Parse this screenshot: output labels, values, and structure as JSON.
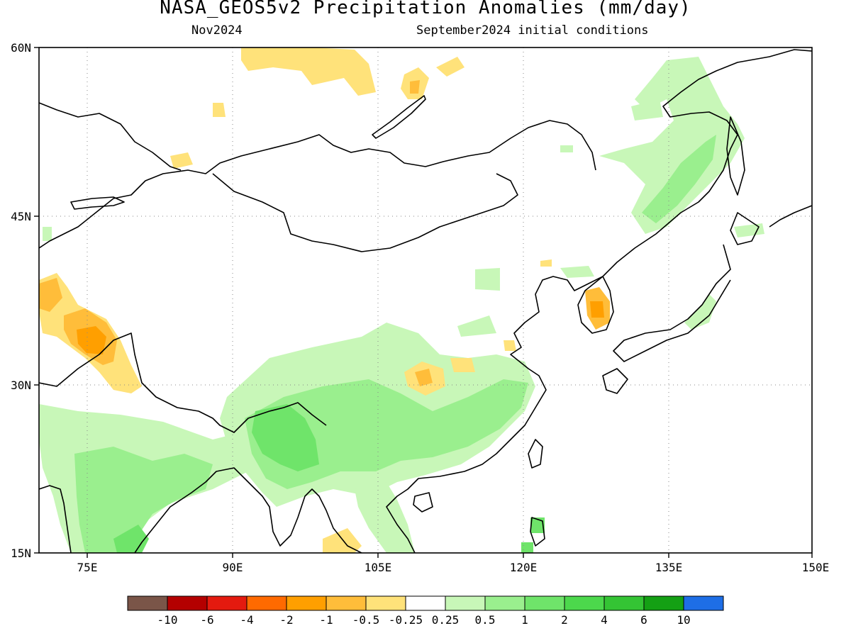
{
  "header": {
    "title": "NASA_GEOS5v2 Precipitation Anomalies (mm/day)",
    "valid_month": "Nov2024",
    "init_conditions": "September2024 initial conditions"
  },
  "map": {
    "lon_range": [
      70,
      150
    ],
    "lat_range": [
      15,
      60
    ],
    "lat_ticks": [
      "60N",
      "45N",
      "30N",
      "15N"
    ],
    "lon_ticks": [
      "75E",
      "90E",
      "105E",
      "120E",
      "135E",
      "150E"
    ],
    "gridlines": true,
    "gridline_style": "dotted"
  },
  "legend": {
    "colors": [
      "#7a5548",
      "#b40000",
      "#e41a0f",
      "#ff6a00",
      "#ff9f00",
      "#ffbd3a",
      "#ffe27a",
      "#ffffff",
      "#c8f7b8",
      "#9aef8e",
      "#6fe46a",
      "#4cd84c",
      "#34c434",
      "#14a014",
      "#1e6ee6"
    ],
    "labels": [
      "-10",
      "-6",
      "-4",
      "-2",
      "-1",
      "-0.5",
      "-0.25",
      "0.25",
      "0.5",
      "1",
      "2",
      "4",
      "6",
      "10"
    ]
  }
}
